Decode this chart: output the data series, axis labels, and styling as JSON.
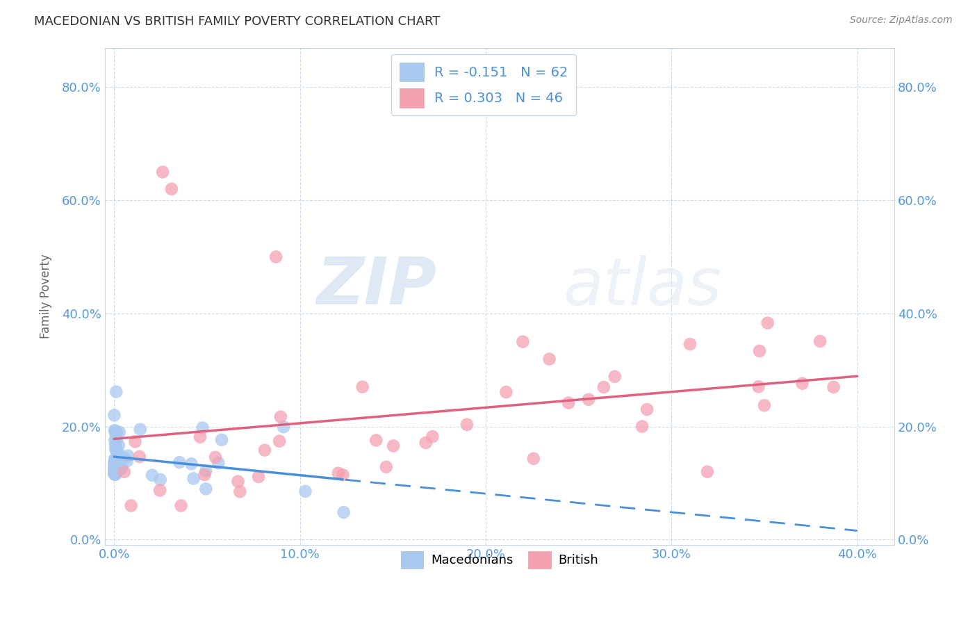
{
  "title": "MACEDONIAN VS BRITISH FAMILY POVERTY CORRELATION CHART",
  "source": "Source: ZipAtlas.com",
  "ylabel_label": "Family Poverty",
  "xlim": [
    -0.005,
    0.42
  ],
  "ylim": [
    -0.01,
    0.87
  ],
  "macedonian_color": "#a8c8f0",
  "british_color": "#f4a0b0",
  "mac_line_color": "#4a90d9",
  "brit_line_color": "#e06080",
  "legend_mac_label": "Macedonians",
  "legend_brit_label": "British",
  "R_mac": -0.151,
  "N_mac": 62,
  "R_brit": 0.303,
  "N_brit": 46,
  "watermark_zip": "ZIP",
  "watermark_atlas": "atlas",
  "mac_line_intercept": 0.115,
  "mac_line_slope": -0.55,
  "mac_line_solid_end": 0.155,
  "brit_line_intercept": 0.09,
  "brit_line_slope": 0.6
}
